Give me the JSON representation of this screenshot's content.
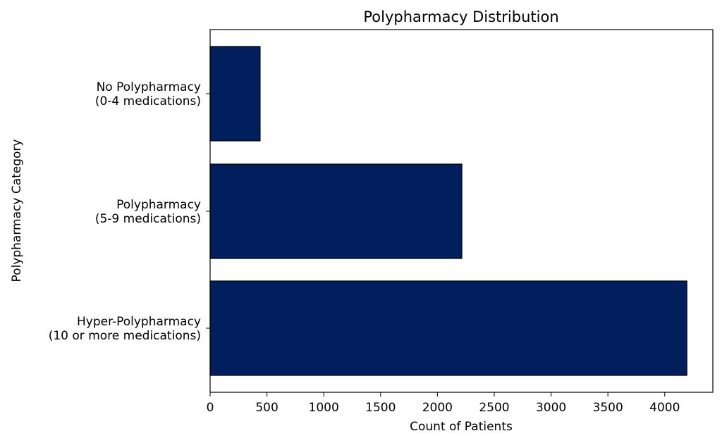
{
  "chart_data": {
    "type": "bar",
    "orientation": "horizontal",
    "title": "Polypharmacy Distribution",
    "xlabel": "Count of Patients",
    "ylabel": "Polypharmacy Category",
    "categories": [
      [
        "No Polypharmacy",
        "(0-4 medications)"
      ],
      [
        "Polypharmacy",
        "(5-9 medications)"
      ],
      [
        "Hyper-Polypharmacy",
        "(10 or more medications)"
      ]
    ],
    "values": [
      440,
      2215,
      4195
    ],
    "xlim": [
      0,
      4400
    ],
    "xticks": [
      0,
      500,
      1000,
      1500,
      2000,
      2500,
      3000,
      3500,
      4000
    ],
    "grid": false,
    "bar_color": "#001f5c",
    "edge_color": "#000000"
  }
}
